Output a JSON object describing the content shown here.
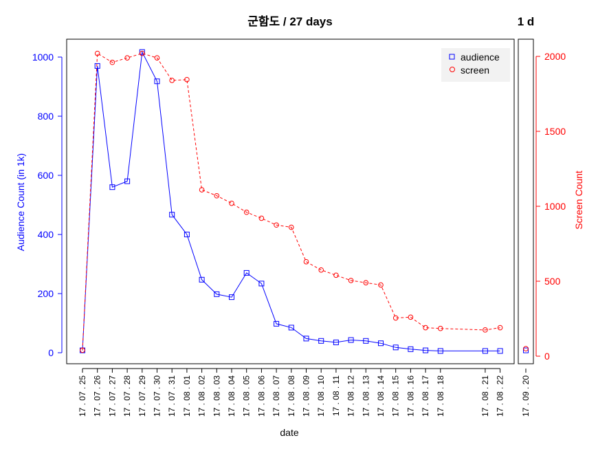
{
  "chart_data": {
    "type": "line",
    "title": "군함도 / 27 days",
    "side_title": "1 d",
    "xlabel": "date",
    "ylabel_left": "Audience Count (in 1k)",
    "ylabel_right": "Screen Count",
    "y_left_lim": [
      0,
      1000
    ],
    "y_left_ticks": [
      "0",
      "200",
      "400",
      "600",
      "800",
      "1000"
    ],
    "y_right_lim": [
      0,
      2000
    ],
    "y_right_ticks": [
      "0",
      "500",
      "1000",
      "1500",
      "2000"
    ],
    "x": [
      "17 . 07 . 25",
      "17 . 07 . 26",
      "17 . 07 . 27",
      "17 . 07 . 28",
      "17 . 07 . 29",
      "17 . 07 . 30",
      "17 . 07 . 31",
      "17 . 08 . 01",
      "17 . 08 . 02",
      "17 . 08 . 03",
      "17 . 08 . 04",
      "17 . 08 . 05",
      "17 . 08 . 06",
      "17 . 08 . 07",
      "17 . 08 . 08",
      "17 . 08 . 09",
      "17 . 08 . 10",
      "17 . 08 . 11",
      "17 . 08 . 12",
      "17 . 08 . 13",
      "17 . 08 . 14",
      "17 . 08 . 15",
      "17 . 08 . 16",
      "17 . 08 . 17",
      "17 . 08 . 18",
      "17 . 08 . 21",
      "17 . 08 . 22"
    ],
    "x_day_gaps": [
      0,
      1,
      2,
      3,
      4,
      5,
      6,
      7,
      8,
      9,
      10,
      11,
      12,
      13,
      14,
      15,
      16,
      17,
      18,
      19,
      20,
      21,
      22,
      23,
      24,
      27,
      28
    ],
    "series": [
      {
        "name": "audience",
        "color": "#0000ff",
        "marker": "square",
        "line": "solid",
        "axis": "left",
        "values": [
          8,
          970,
          560,
          580,
          1017,
          918,
          467,
          400,
          247,
          198,
          188,
          270,
          234,
          98,
          85,
          48,
          40,
          35,
          43,
          40,
          32,
          18,
          12,
          8,
          6,
          6,
          6
        ]
      },
      {
        "name": "screen",
        "color": "#ff0000",
        "marker": "circle",
        "line": "dashed",
        "axis": "right",
        "values": [
          40,
          2020,
          1960,
          1990,
          2020,
          1990,
          1840,
          1845,
          1110,
          1070,
          1020,
          960,
          920,
          875,
          860,
          630,
          575,
          540,
          505,
          490,
          475,
          255,
          260,
          190,
          185,
          175,
          190
        ]
      }
    ],
    "side_panel": {
      "x": [
        "17 . 09 . 20"
      ],
      "audience": [
        8
      ],
      "screen": [
        50
      ]
    },
    "legend": {
      "position": "top-right",
      "entries": [
        "audience",
        "screen"
      ]
    },
    "grid": false
  }
}
